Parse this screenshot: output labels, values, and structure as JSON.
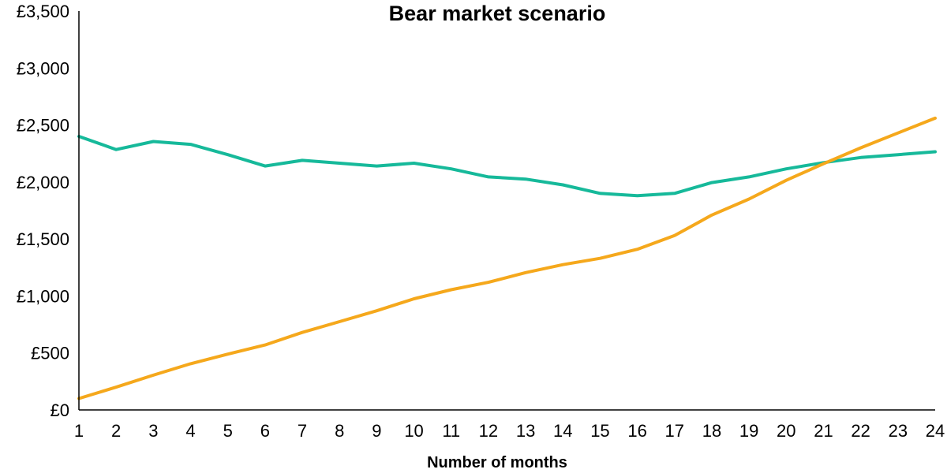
{
  "chart_data": {
    "type": "line",
    "title": "Bear market scenario",
    "xlabel": "Number of months",
    "ylabel": "",
    "x": [
      1,
      2,
      3,
      4,
      5,
      6,
      7,
      8,
      9,
      10,
      11,
      12,
      13,
      14,
      15,
      16,
      17,
      18,
      19,
      20,
      21,
      22,
      23,
      24
    ],
    "ylim": [
      0,
      3500
    ],
    "yticks": [
      0,
      500,
      1000,
      1500,
      2000,
      2500,
      3000,
      3500
    ],
    "ytick_labels": [
      "£0",
      "£500",
      "£1,000",
      "£1,500",
      "£2,000",
      "£2,500",
      "£3,000",
      "£3,500"
    ],
    "grid": false,
    "legend": "none",
    "series": [
      {
        "color": "#16b99a",
        "values": [
          2400,
          2285,
          2355,
          2330,
          2240,
          2140,
          2190,
          2165,
          2140,
          2165,
          2115,
          2045,
          2025,
          1975,
          1900,
          1880,
          1900,
          1995,
          2045,
          2115,
          2170,
          2215,
          2240,
          2265
        ]
      },
      {
        "color": "#f5a81c",
        "values": [
          100,
          200,
          305,
          405,
          490,
          570,
          680,
          775,
          870,
          975,
          1055,
          1120,
          1205,
          1275,
          1330,
          1410,
          1530,
          1710,
          1850,
          2015,
          2160,
          2300,
          2430,
          2560
        ]
      }
    ]
  }
}
